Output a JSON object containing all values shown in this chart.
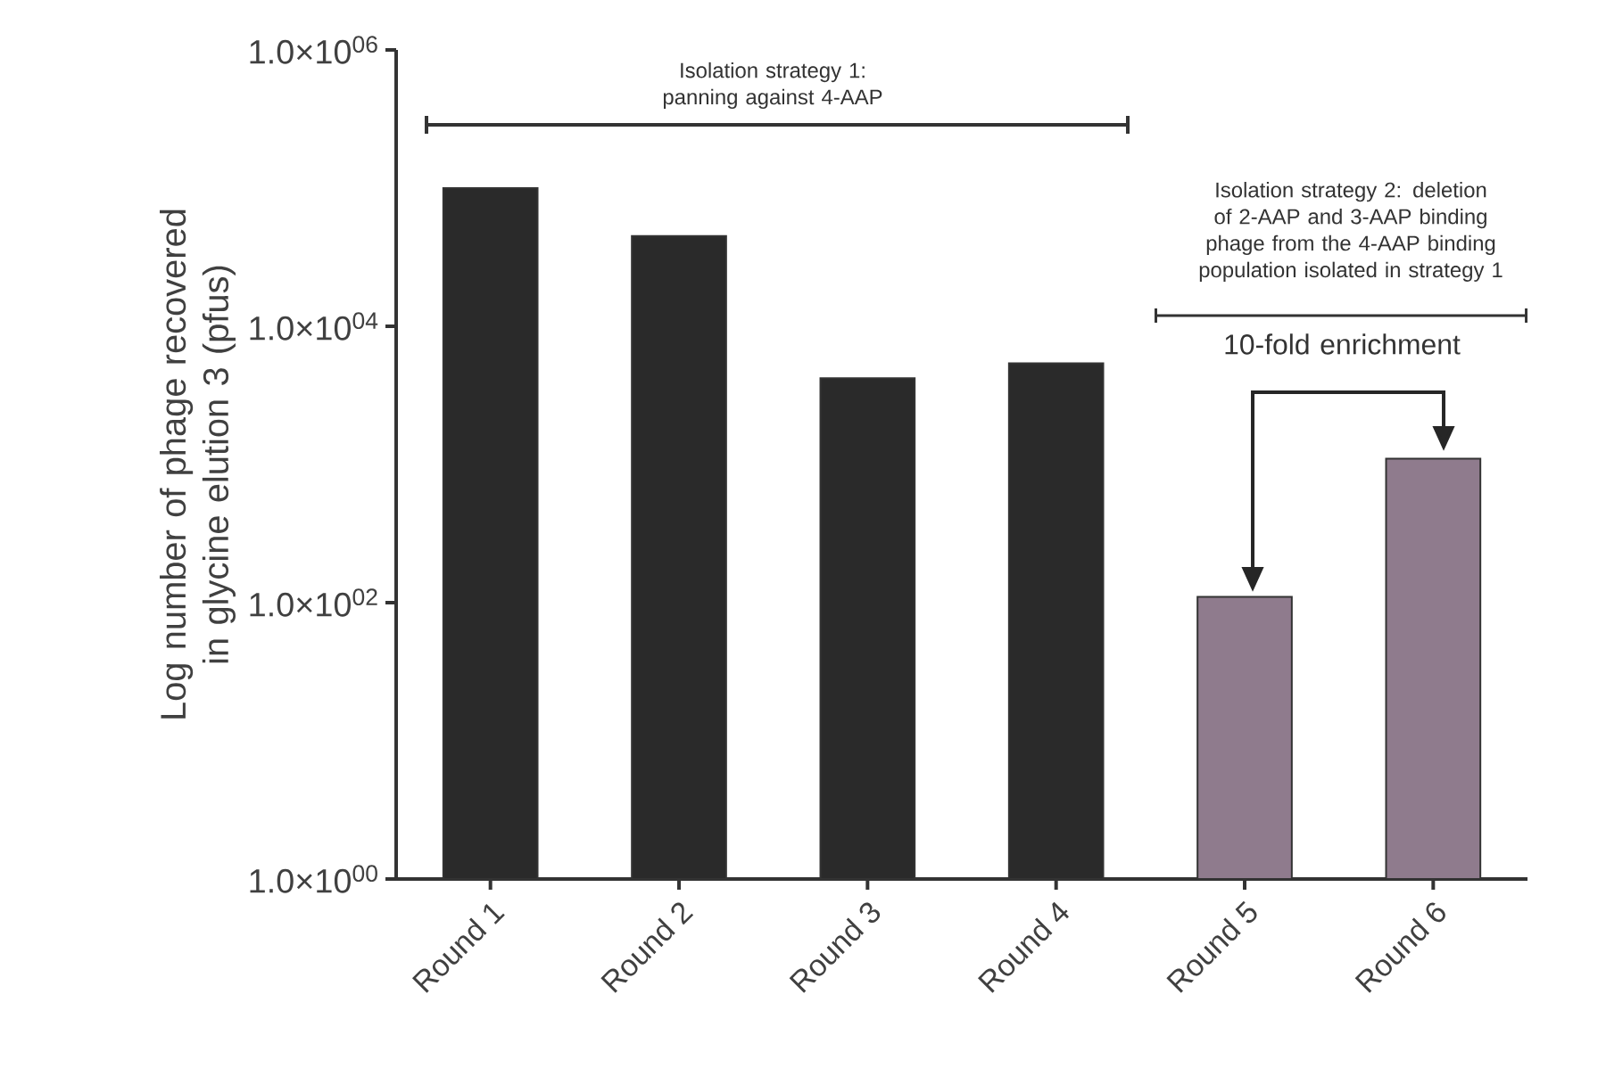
{
  "chart_data": {
    "type": "bar",
    "ylabel": "Log number of phage recovered in glycine elution 3 (pfus)",
    "categories": [
      "Round 1",
      "Round 2",
      "Round 3",
      "Round 4",
      "Round 5",
      "Round 6"
    ],
    "values": [
      100000,
      45000,
      4200,
      5400,
      110,
      1100
    ],
    "colors": [
      "#2a2a2a",
      "#2a2a2a",
      "#2a2a2a",
      "#2a2a2a",
      "#8f7b8d",
      "#8f7b8d"
    ],
    "log": true,
    "ylim": [
      1,
      1000000
    ],
    "yticks": [
      {
        "value": 1,
        "label": "1.0×10$^{00}$"
      },
      {
        "value": 100,
        "label": "1.0×10$^{02}$"
      },
      {
        "value": 10000,
        "label": "1.0×10$^{04}$"
      },
      {
        "value": 1000000,
        "label": "1.0×10$^{06}$"
      }
    ],
    "annotations": [
      "Isolation strategy 1: panning against 4-AAP",
      "Isolation strategy 2: deletion of 2-AAP and 3-AAP binding phage from the 4-AAP binding population isolated in strategy 1",
      "10-fold enrichment"
    ]
  }
}
